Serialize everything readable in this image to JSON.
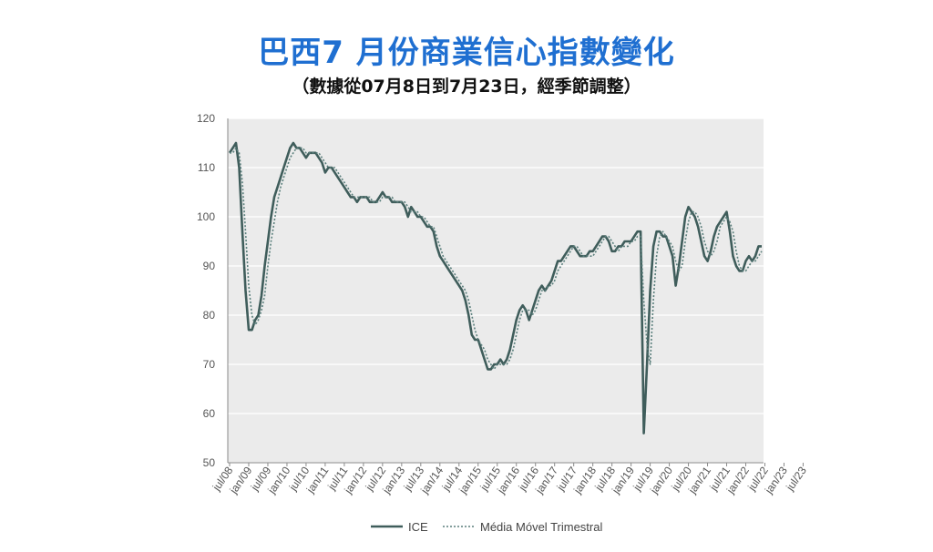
{
  "header": {
    "title": "巴西7 月份商業信心指數變化",
    "subtitle": "（數據從07月8日到7月23日，經季節調整）"
  },
  "colors": {
    "title": "#1f6fd1",
    "plot_bg": "#ebebeb",
    "series_line": "#3f5d5b",
    "moving_avg": "#5a7f7c"
  },
  "chart_data": {
    "type": "line",
    "title": "",
    "xlabel": "",
    "ylabel": "",
    "ylim": [
      50,
      120
    ],
    "yticks": [
      50,
      60,
      70,
      80,
      90,
      100,
      110,
      120
    ],
    "grid": "horizontal",
    "legend_position": "bottom",
    "x_tick_labels": [
      "jul/08",
      "jan/09",
      "jul/09",
      "jan/10",
      "jul/10",
      "jan/11",
      "jul/11",
      "jan/12",
      "jul/12",
      "jan/13",
      "jul/13",
      "jan/14",
      "jul/14",
      "jan/15",
      "jul/15",
      "jan/16",
      "jul/16",
      "jan/17",
      "jul/17",
      "jan/18",
      "jul/18",
      "jan/19",
      "jul/19",
      "jan/20",
      "jul/20",
      "jan/21",
      "jul/21",
      "jan/22",
      "jul/22",
      "jan/23",
      "jul/23"
    ],
    "series": [
      {
        "name": "ICE",
        "style": "solid",
        "values": [
          113,
          114,
          115,
          110,
          97,
          85,
          77,
          77,
          79,
          80,
          84,
          90,
          95,
          100,
          104,
          106,
          108,
          110,
          112,
          114,
          115,
          114,
          114,
          113,
          112,
          113,
          113,
          113,
          112,
          111,
          109,
          110,
          110,
          109,
          108,
          107,
          106,
          105,
          104,
          104,
          103,
          104,
          104,
          104,
          103,
          103,
          103,
          104,
          105,
          104,
          104,
          103,
          103,
          103,
          103,
          102,
          100,
          102,
          101,
          100,
          100,
          99,
          98,
          98,
          97,
          94,
          92,
          91,
          90,
          89,
          88,
          87,
          86,
          85,
          83,
          80,
          76,
          75,
          75,
          73,
          71,
          69,
          69,
          70,
          70,
          71,
          70,
          71,
          73,
          76,
          79,
          81,
          82,
          81,
          79,
          81,
          83,
          85,
          86,
          85,
          86,
          87,
          89,
          91,
          91,
          92,
          93,
          94,
          94,
          93,
          92,
          92,
          92,
          93,
          93,
          94,
          95,
          96,
          96,
          95,
          93,
          93,
          94,
          94,
          95,
          95,
          95,
          96,
          97,
          97,
          56,
          70,
          85,
          94,
          97,
          97,
          96,
          96,
          94,
          92,
          86,
          90,
          95,
          100,
          102,
          101,
          100,
          98,
          95,
          92,
          91,
          93,
          96,
          98,
          99,
          100,
          101,
          97,
          92,
          90,
          89,
          89,
          91,
          92,
          91,
          92,
          94,
          94
        ]
      },
      {
        "name": "Média Móvel Trimestral",
        "style": "dotted",
        "values": [
          113,
          113,
          114,
          113,
          107,
          97,
          86,
          80,
          78,
          79,
          81,
          84,
          90,
          95,
          99,
          103,
          106,
          108,
          110,
          112,
          113,
          114,
          114,
          114,
          113,
          113,
          113,
          113,
          113,
          112,
          111,
          110,
          110,
          110,
          109,
          108,
          107,
          106,
          105,
          104,
          104,
          104,
          104,
          104,
          104,
          103,
          103,
          103,
          104,
          104,
          104,
          104,
          103,
          103,
          103,
          103,
          102,
          101,
          101,
          101,
          100,
          100,
          99,
          98,
          98,
          96,
          94,
          92,
          91,
          90,
          89,
          88,
          87,
          86,
          85,
          83,
          80,
          77,
          75,
          74,
          73,
          71,
          70,
          69,
          70,
          70,
          70,
          70,
          71,
          73,
          76,
          79,
          81,
          81,
          81,
          80,
          81,
          83,
          85,
          85,
          86,
          86,
          87,
          89,
          90,
          91,
          92,
          93,
          94,
          94,
          93,
          92,
          92,
          92,
          92,
          93,
          94,
          95,
          96,
          96,
          95,
          94,
          93,
          94,
          94,
          94,
          95,
          95,
          96,
          96,
          83,
          74,
          70,
          83,
          92,
          96,
          97,
          96,
          95,
          94,
          91,
          89,
          90,
          95,
          99,
          101,
          101,
          100,
          98,
          95,
          93,
          92,
          93,
          95,
          98,
          99,
          100,
          99,
          97,
          93,
          90,
          89,
          89,
          90,
          91,
          91,
          92,
          93
        ]
      }
    ]
  }
}
